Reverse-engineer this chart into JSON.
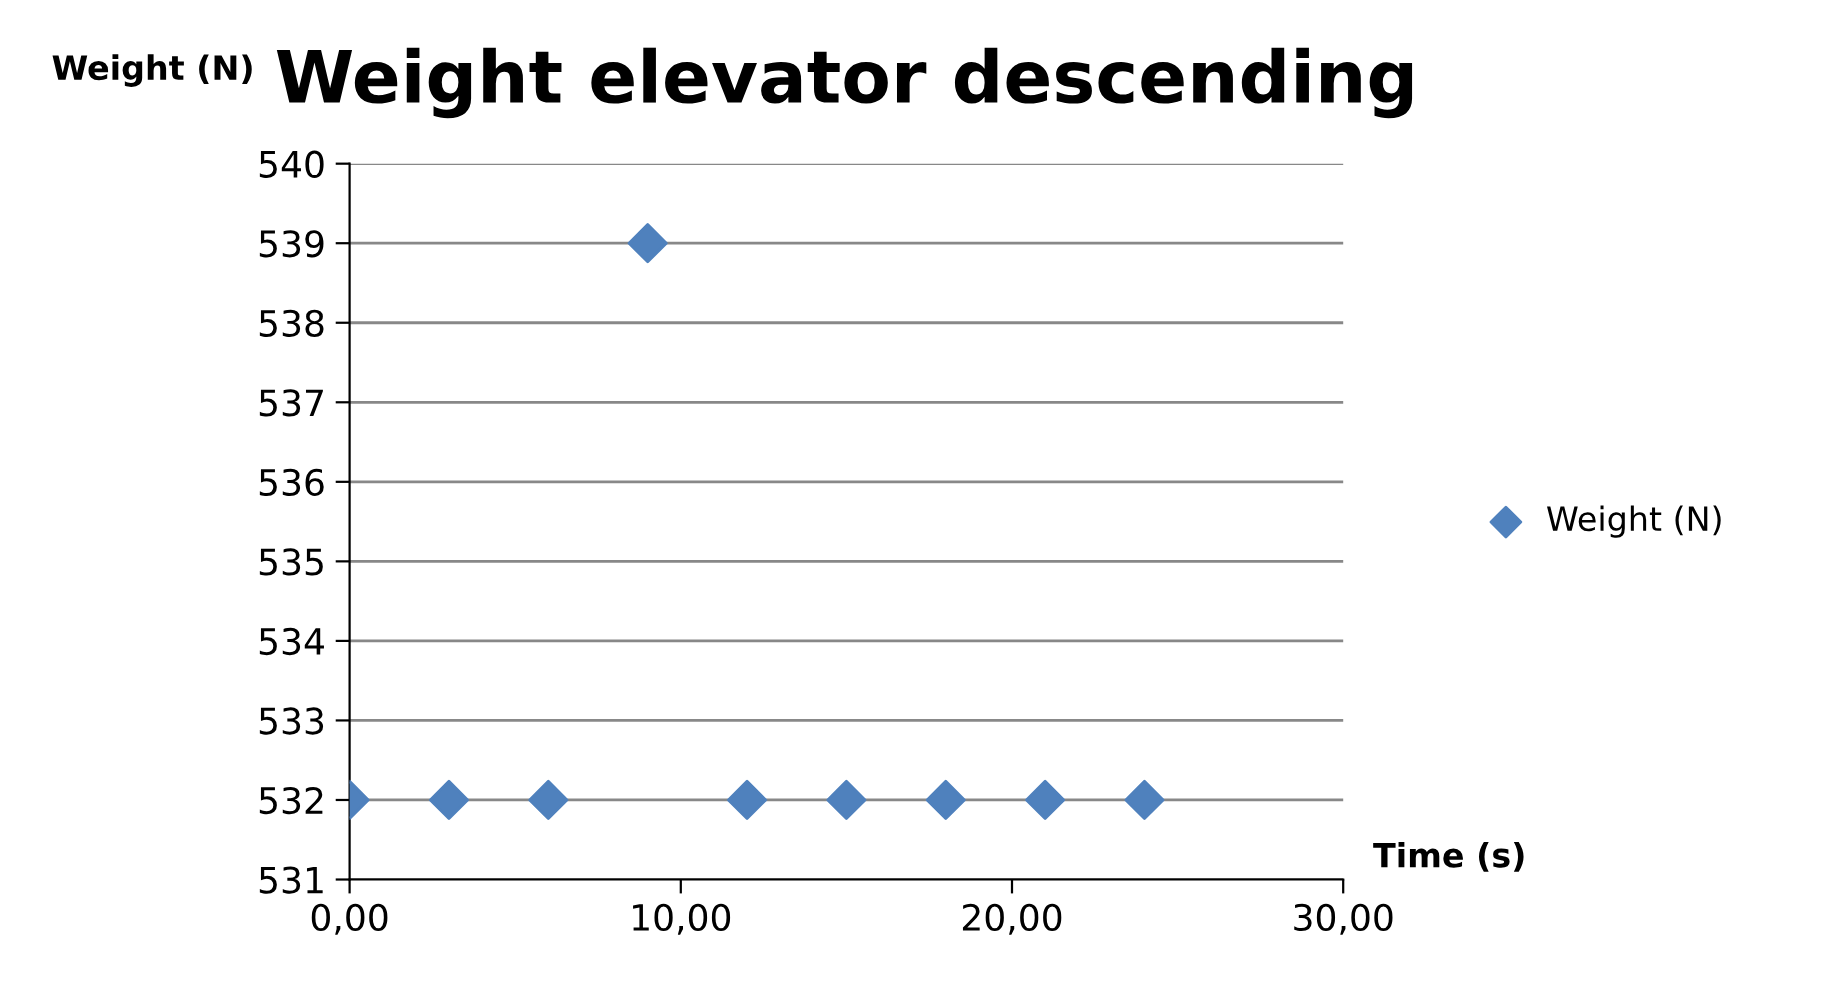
{
  "chart_data": {
    "type": "scatter",
    "title": "Weight elevator descending",
    "xlabel": "Time (s)",
    "ylabel": "Weight (N)",
    "x": [
      0,
      3,
      6,
      9,
      12,
      15,
      18,
      21,
      24
    ],
    "series": [
      {
        "name": "Weight (N)",
        "color": "#4f81bd",
        "values": [
          532,
          532,
          532,
          539,
          532,
          532,
          532,
          532,
          532
        ]
      }
    ],
    "xlim": [
      0,
      30
    ],
    "xticks": [
      {
        "value": 0,
        "label": "0,00"
      },
      {
        "value": 10,
        "label": "10,00"
      },
      {
        "value": 20,
        "label": "20,00"
      },
      {
        "value": 30,
        "label": "30,00"
      }
    ],
    "ylim": [
      531,
      540
    ],
    "yticks": [
      531,
      532,
      533,
      534,
      535,
      536,
      537,
      538,
      539,
      540
    ],
    "grid": "y",
    "legend": "right",
    "marker": "diamond"
  }
}
